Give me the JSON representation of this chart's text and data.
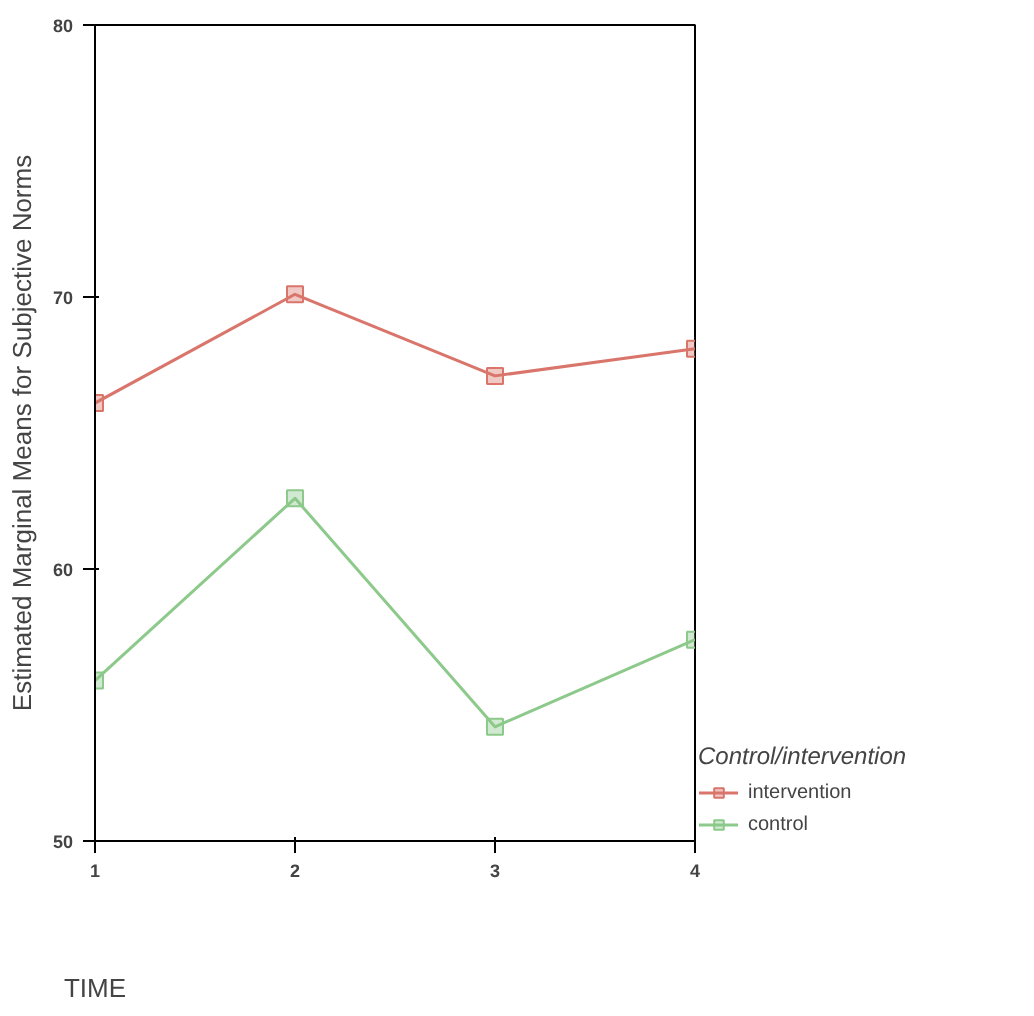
{
  "chart_data": {
    "type": "line",
    "xlabel": "TIME",
    "ylabel": "Estimated Marginal Means for Subjective Norms",
    "legend_title": "Control/intervention",
    "x": [
      1,
      2,
      3,
      4
    ],
    "xlim": [
      1,
      4
    ],
    "xticks": [
      1,
      2,
      3,
      4
    ],
    "ylim": [
      50,
      80
    ],
    "yticks": [
      50,
      60,
      70,
      80
    ],
    "marker": "square",
    "grid": false,
    "legend": "right",
    "series": [
      {
        "name": "intervention",
        "color": "#d9756b",
        "values": [
          66.1,
          70.1,
          67.1,
          68.1
        ]
      },
      {
        "name": "control",
        "color": "#8cc98a",
        "values": [
          55.9,
          62.6,
          54.2,
          57.4
        ]
      }
    ]
  }
}
